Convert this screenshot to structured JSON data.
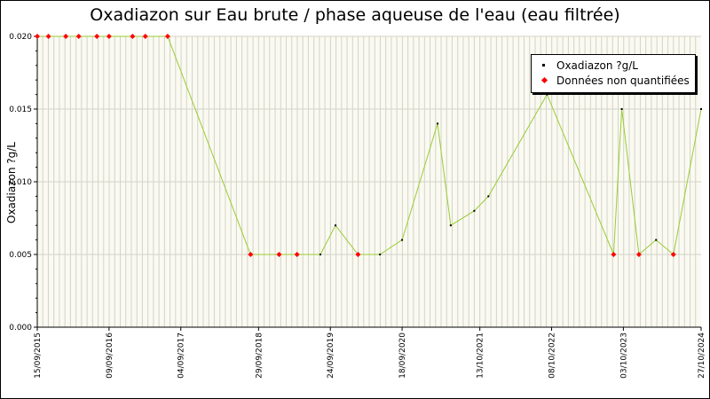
{
  "chart_data": {
    "type": "line",
    "title": "Oxadiazon sur Eau brute / phase aqueuse de l'eau (eau filtrée)",
    "ylabel": "Oxadiazon ?g/L",
    "xlabel": "",
    "ylim": [
      0,
      0.02
    ],
    "y_ticks": [
      "0.000",
      "0.005",
      "0.010",
      "0.015",
      "0.020"
    ],
    "x_tick_labels": [
      "15/09/2015",
      "09/09/2016",
      "04/09/2017",
      "29/09/2018",
      "24/09/2019",
      "18/09/2020",
      "13/10/2021",
      "08/10/2022",
      "03/10/2023",
      "27/10/2024"
    ],
    "grid": true,
    "legend_position": "top-right",
    "line_color": "#99cc33",
    "series": [
      {
        "name": "Oxadiazon ?g/L",
        "color": "#000000"
      },
      {
        "name": "Données non quantifiées",
        "color": "#ff0000"
      }
    ],
    "points": [
      {
        "date": "2015-09-15",
        "value": 0.02,
        "quantified": false
      },
      {
        "date": "2015-11-10",
        "value": 0.02,
        "quantified": false
      },
      {
        "date": "2016-02-05",
        "value": 0.02,
        "quantified": false
      },
      {
        "date": "2016-04-10",
        "value": 0.02,
        "quantified": false
      },
      {
        "date": "2016-07-10",
        "value": 0.02,
        "quantified": false
      },
      {
        "date": "2016-09-09",
        "value": 0.02,
        "quantified": false
      },
      {
        "date": "2017-01-05",
        "value": 0.02,
        "quantified": false
      },
      {
        "date": "2017-03-10",
        "value": 0.02,
        "quantified": false
      },
      {
        "date": "2017-06-30",
        "value": 0.02,
        "quantified": false
      },
      {
        "date": "2018-08-20",
        "value": 0.005,
        "quantified": false
      },
      {
        "date": "2019-01-10",
        "value": 0.005,
        "quantified": false
      },
      {
        "date": "2019-04-10",
        "value": 0.005,
        "quantified": false
      },
      {
        "date": "2019-08-05",
        "value": 0.005,
        "quantified": true
      },
      {
        "date": "2019-10-20",
        "value": 0.007,
        "quantified": true
      },
      {
        "date": "2020-02-10",
        "value": 0.005,
        "quantified": false
      },
      {
        "date": "2020-05-30",
        "value": 0.005,
        "quantified": true
      },
      {
        "date": "2020-09-18",
        "value": 0.006,
        "quantified": true
      },
      {
        "date": "2021-03-15",
        "value": 0.014,
        "quantified": true
      },
      {
        "date": "2021-05-20",
        "value": 0.007,
        "quantified": true
      },
      {
        "date": "2021-09-15",
        "value": 0.008,
        "quantified": true
      },
      {
        "date": "2021-11-25",
        "value": 0.009,
        "quantified": true
      },
      {
        "date": "2022-09-15",
        "value": 0.016,
        "quantified": true
      },
      {
        "date": "2023-08-15",
        "value": 0.005,
        "quantified": false
      },
      {
        "date": "2023-09-25",
        "value": 0.015,
        "quantified": true
      },
      {
        "date": "2023-12-20",
        "value": 0.005,
        "quantified": false
      },
      {
        "date": "2024-03-15",
        "value": 0.006,
        "quantified": true
      },
      {
        "date": "2024-06-10",
        "value": 0.005,
        "quantified": false
      },
      {
        "date": "2024-10-27",
        "value": 0.015,
        "quantified": true
      }
    ]
  }
}
